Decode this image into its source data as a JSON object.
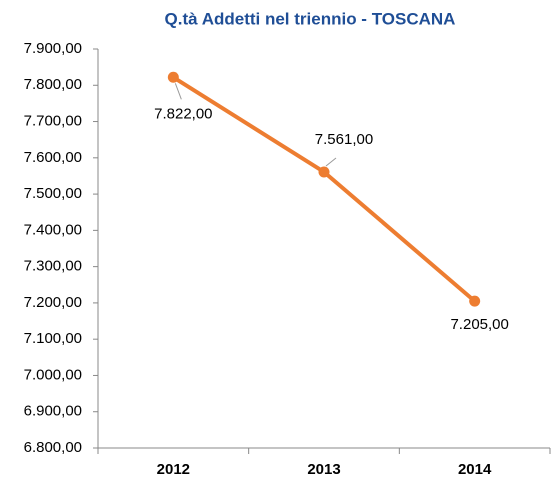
{
  "chart_data": {
    "type": "line",
    "title": "Q.tà Addetti nel triennio - TOSCANA",
    "categories": [
      "2012",
      "2013",
      "2014"
    ],
    "series": [
      {
        "name": "TOSCANA",
        "color": "#ed7d31",
        "values": [
          7822,
          7561,
          7205
        ],
        "value_labels": [
          "7.822,00",
          "7.561,00",
          "7.205,00"
        ]
      }
    ],
    "ylim": [
      6800,
      7900
    ],
    "yticks": [
      {
        "value": 6800,
        "label": "6.800,00"
      },
      {
        "value": 6900,
        "label": "6.900,00"
      },
      {
        "value": 7000,
        "label": "7.000,00"
      },
      {
        "value": 7100,
        "label": "7.100,00"
      },
      {
        "value": 7200,
        "label": "7.200,00"
      },
      {
        "value": 7300,
        "label": "7.300,00"
      },
      {
        "value": 7400,
        "label": "7.400,00"
      },
      {
        "value": 7500,
        "label": "7.500,00"
      },
      {
        "value": 7600,
        "label": "7.600,00"
      },
      {
        "value": 7700,
        "label": "7.700,00"
      },
      {
        "value": 7800,
        "label": "7.800,00"
      },
      {
        "value": 7900,
        "label": "7.900,00"
      }
    ],
    "grid": false
  }
}
